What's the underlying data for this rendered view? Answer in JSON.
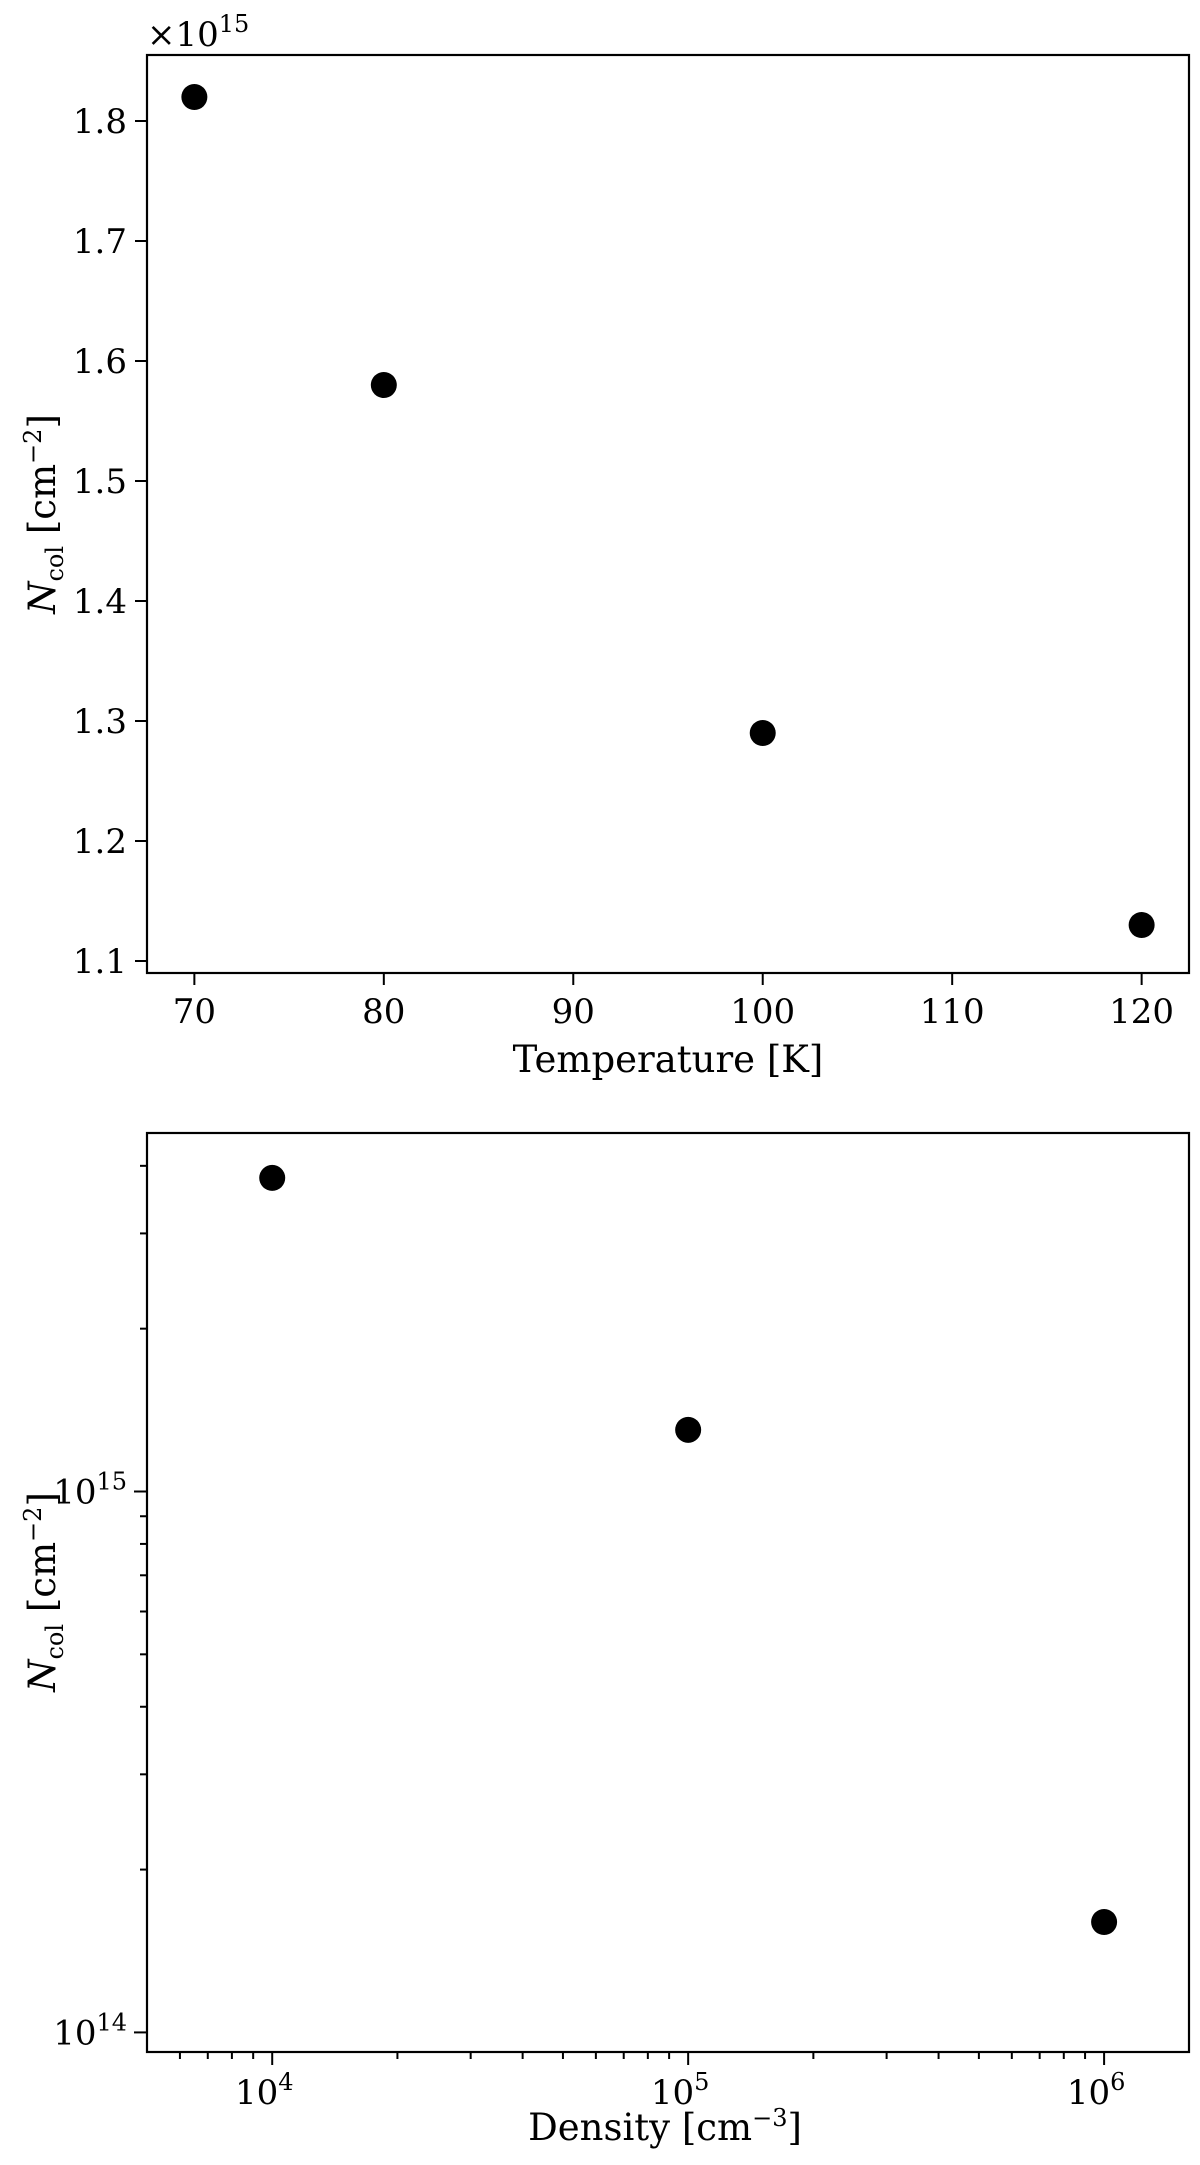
{
  "chart_data": [
    {
      "type": "scatter",
      "xlabel": "Temperature [K]",
      "ylabel": "N_col [cm^-2]",
      "ylabel_main": "N",
      "ylabel_sub": "col",
      "ylabel_rest": " [cm",
      "ylabel_exp": "−2",
      "ylabel_close": "]",
      "y_offset_text": "×10",
      "y_offset_exp": "15",
      "xlim": [
        67.5,
        122.5
      ],
      "ylim": [
        1.09,
        1.855
      ],
      "xticks": [
        70,
        80,
        90,
        100,
        110,
        120
      ],
      "xtick_labels": [
        "70",
        "80",
        "90",
        "100",
        "110",
        "120"
      ],
      "yticks": [
        1.1,
        1.2,
        1.3,
        1.4,
        1.5,
        1.6,
        1.7,
        1.8
      ],
      "ytick_labels": [
        "1.1",
        "1.2",
        "1.3",
        "1.4",
        "1.5",
        "1.6",
        "1.7",
        "1.8"
      ],
      "x": [
        70,
        80,
        100,
        120
      ],
      "y": [
        1.82,
        1.58,
        1.29,
        1.13
      ],
      "marker_color": "#000000",
      "grid": false
    },
    {
      "type": "scatter",
      "xlabel": "Density [cm^-3]",
      "xlabel_main": "Density [cm",
      "xlabel_exp": "−3",
      "xlabel_close": "]",
      "ylabel": "N_col [cm^-2]",
      "ylabel_main": "N",
      "ylabel_sub": "col",
      "ylabel_rest": " [cm",
      "ylabel_exp": "−2",
      "ylabel_close": "]",
      "xscale": "log",
      "yscale": "log",
      "xlim": [
        5000,
        1600000
      ],
      "ylim": [
        92000000000000.0,
        4600000000000000.0
      ],
      "xtick_major": [
        10000,
        100000,
        1000000
      ],
      "xtick_labels": [
        {
          "base": "10",
          "exp": "4"
        },
        {
          "base": "10",
          "exp": "5"
        },
        {
          "base": "10",
          "exp": "6"
        }
      ],
      "ytick_major": [
        100000000000000.0,
        1000000000000000.0
      ],
      "ytick_labels": [
        {
          "base": "10",
          "exp": "14"
        },
        {
          "base": "10",
          "exp": "15"
        }
      ],
      "x": [
        10000,
        100000,
        1000000
      ],
      "y": [
        3800000000000000.0,
        1300000000000000.0,
        160000000000000.0
      ],
      "marker_color": "#000000",
      "grid": false
    }
  ]
}
